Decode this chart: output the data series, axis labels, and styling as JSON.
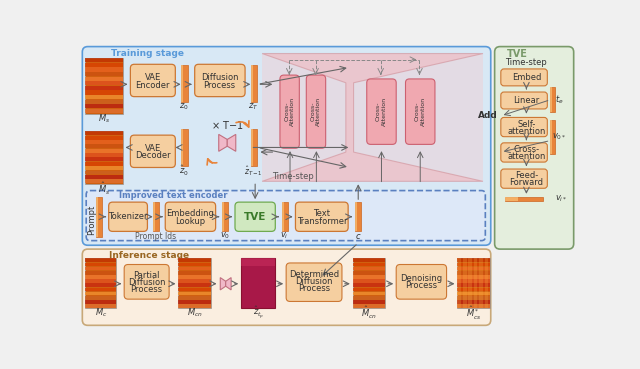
{
  "fig_width": 6.4,
  "fig_height": 3.69,
  "bg_outer": "#f0f0f0",
  "training_bg": "#d8e8f5",
  "training_border": "#5a9ad9",
  "training_label": "Training stage",
  "improved_bg": "#dde8f8",
  "improved_border": "#5a80c0",
  "improved_label": "Improved text encoder",
  "inference_bg": "#faeee0",
  "inference_border": "#c8a878",
  "inference_label": "Inference stage",
  "tve_bg": "#e4eedd",
  "tve_border": "#7a9a6a",
  "tve_label": "TVE",
  "box_fill": "#f5cfa0",
  "box_edge": "#cc7733",
  "box_text": "#333333",
  "green_fill": "#d0e8c0",
  "green_edge": "#70aa50",
  "arrow_color": "#666666",
  "dashed_color": "#888888",
  "attn_fill": "#f0a8b0",
  "attn_edge": "#cc6070",
  "attn_gradient_fill": "#f5c8cc",
  "orange_bar": "#e8843a",
  "bar_edge": "#cc6622",
  "funnel_fill": "#f0b8c0",
  "funnel_edge": "#d09098"
}
